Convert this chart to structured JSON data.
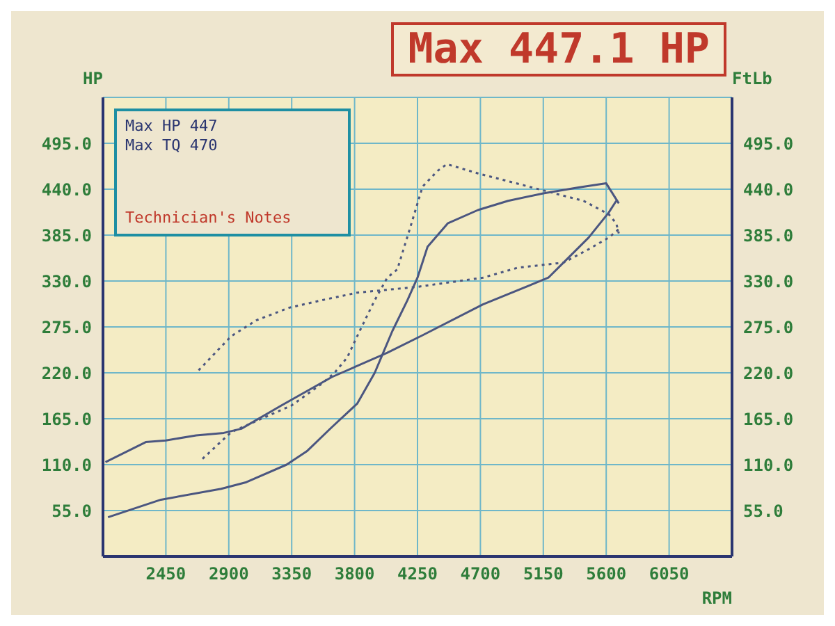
{
  "chart_data": {
    "type": "line",
    "title": "Max 447.1 HP",
    "xlabel": "RPM",
    "ylabel": "HP",
    "y2label": "FtLb",
    "annotations": [
      "Max HP 447",
      "Max TQ 470",
      "Technician's Notes"
    ],
    "xlim": [
      2000,
      6500
    ],
    "xticks": [
      2450,
      2900,
      3350,
      3800,
      4250,
      4700,
      5150,
      5600,
      6050
    ],
    "ylim": [
      0,
      550
    ],
    "yticks": [
      {
        "value": 55,
        "label": "55.0"
      },
      {
        "value": 110,
        "label": "110.0"
      },
      {
        "value": 165,
        "label": "165.0"
      },
      {
        "value": 220,
        "label": "220.0"
      },
      {
        "value": 275,
        "label": "275.0"
      },
      {
        "value": 330,
        "label": "330.0"
      },
      {
        "value": 385,
        "label": "385.0"
      },
      {
        "value": 440,
        "label": "440.0"
      },
      {
        "value": 495,
        "label": "495.0"
      }
    ],
    "y2lim": [
      0,
      550
    ],
    "y2ticks": [
      {
        "value": 55,
        "label": "55.0"
      },
      {
        "value": 110,
        "label": "110.0"
      },
      {
        "value": 165,
        "label": "165.0"
      },
      {
        "value": 220,
        "label": "220.0"
      },
      {
        "value": 275,
        "label": "275.0"
      },
      {
        "value": 330,
        "label": "330.0"
      },
      {
        "value": 385,
        "label": "385.0"
      },
      {
        "value": 440,
        "label": "440.0"
      },
      {
        "value": 495,
        "label": "495.0"
      }
    ],
    "grid": true,
    "marker": "none",
    "series": [
      {
        "color": "#4b5680",
        "line_style": "solid",
        "x": [
          2036,
          2414,
          2846,
          3026,
          3314,
          3458,
          3638,
          3818,
          3944,
          4070,
          4178,
          4250,
          4322,
          4466,
          4682,
          4898,
          5150,
          5402,
          5600,
          5690
        ],
        "values": [
          47,
          68,
          81,
          89,
          110,
          126,
          155,
          183,
          220,
          270,
          307,
          334,
          371,
          399,
          415,
          426,
          435,
          442,
          447,
          423
        ]
      },
      {
        "color": "#4b5680",
        "line_style": "solid",
        "x": [
          2018,
          2306,
          2450,
          2666,
          2864,
          2990,
          3278,
          3638,
          4034,
          4286,
          4718,
          5186,
          5294,
          5474,
          5618,
          5672
        ],
        "values": [
          113,
          137,
          139,
          145,
          148,
          153,
          181,
          215,
          244,
          265,
          302,
          334,
          352,
          382,
          412,
          426
        ]
      },
      {
        "color": "#4b5680",
        "line_style": "dotted",
        "x": [
          2712,
          2918,
          3134,
          3350,
          3566,
          3656,
          3746,
          3836,
          3944,
          4034,
          4106,
          4196,
          4286,
          4394,
          4460,
          4682,
          4934,
          5186,
          5438,
          5618,
          5672,
          5690
        ],
        "values": [
          117,
          149,
          165,
          181,
          207,
          220,
          238,
          270,
          307,
          334,
          344,
          393,
          443,
          462,
          470,
          459,
          448,
          437,
          426,
          410,
          399,
          387
        ]
      },
      {
        "color": "#4b5680",
        "line_style": "dotted",
        "x": [
          2684,
          2918,
          3098,
          3332,
          3566,
          3818,
          4250,
          4718,
          4970,
          5294,
          5474,
          5618,
          5690
        ],
        "values": [
          223,
          264,
          283,
          298,
          307,
          316,
          323,
          334,
          346,
          352,
          368,
          382,
          392
        ]
      }
    ]
  }
}
